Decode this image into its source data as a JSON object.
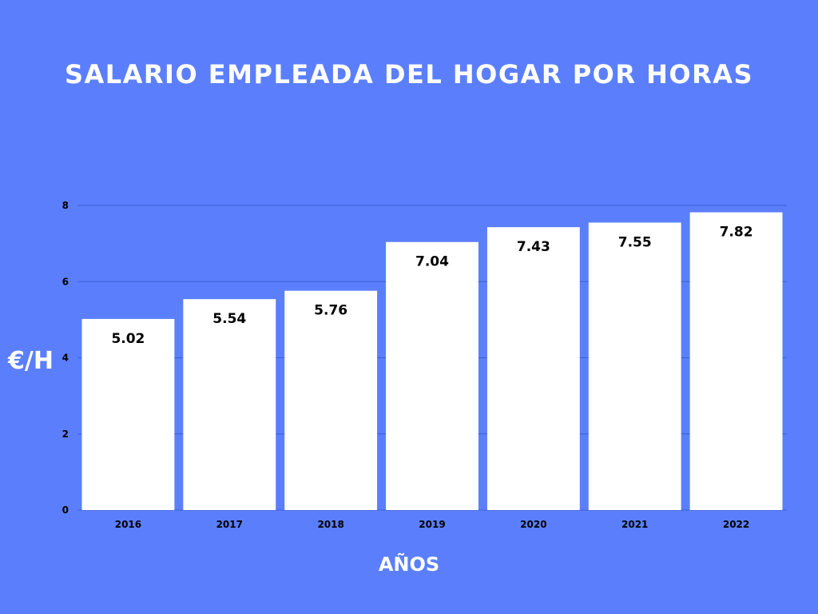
{
  "chart_data": {
    "type": "bar",
    "title": "SALARIO EMPLEADA DEL HOGAR POR HORAS",
    "xlabel": "AÑOS",
    "ylabel": "€/H",
    "categories": [
      "2016",
      "2017",
      "2018",
      "2019",
      "2020",
      "2021",
      "2022"
    ],
    "values": [
      5.02,
      5.54,
      5.76,
      7.04,
      7.43,
      7.55,
      7.82
    ],
    "data_labels": [
      "5.02",
      "5.54",
      "5.76",
      "7.04",
      "7.43",
      "7.55",
      "7.82"
    ],
    "yticks": [
      "0",
      "2",
      "4",
      "6",
      "8"
    ],
    "ylim": [
      0,
      8
    ],
    "grid": true,
    "legend": "none",
    "colors": {
      "background": "#5b7ffc",
      "bar": "#ffffff",
      "gridline": "#3d5fd6",
      "text": "#000000",
      "title": "#ffffff"
    }
  }
}
